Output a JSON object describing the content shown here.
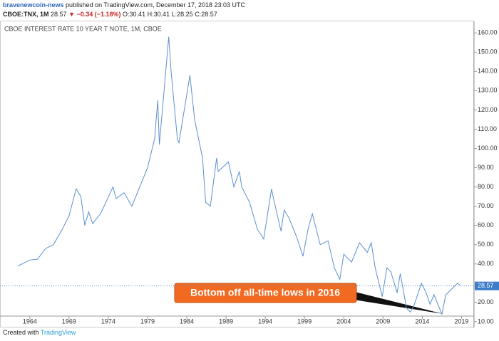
{
  "header": {
    "author": "bravenewcoin-news",
    "published": "published on TradingView.com, December 17, 2018 23:03 UTC",
    "symbol": "CBOE:TNX, 1M",
    "last": "28.57",
    "change": "▼ −0.34 (−1.18%)",
    "open": "O:30.41",
    "high": "H:30.41",
    "low": "L:28.25",
    "close": "C:28.57"
  },
  "footer": {
    "created": "Created with",
    "brand": "TradingView"
  },
  "chart_data": {
    "type": "line",
    "title": "CBOE INTEREST RATE 10 YEAR T NOTE, 1M, CBOE",
    "annotation": "Bottom off all-time lows in 2016",
    "series": [
      {
        "name": "CBOE:TNX",
        "color": "#5b8fd0",
        "x": [
          1962.5,
          1963,
          1964,
          1965,
          1966,
          1967,
          1968,
          1969,
          1969.9,
          1970.5,
          1971,
          1971.5,
          1972,
          1973,
          1973.7,
          1974.6,
          1975,
          1976,
          1977,
          1978,
          1979,
          1979.9,
          1980.3,
          1980.5,
          1981,
          1981.7,
          1982,
          1982.8,
          1983,
          1984.4,
          1985,
          1986,
          1986.4,
          1987,
          1987.8,
          1988,
          1989.3,
          1990,
          1990.7,
          1991,
          1992,
          1993,
          1993.8,
          1994.8,
          1995,
          1996,
          1996.4,
          1997,
          1998,
          1998.8,
          1999.5,
          2000,
          2001,
          2002,
          2002.8,
          2003.5,
          2004,
          2005,
          2006,
          2007,
          2007.5,
          2008,
          2008.9,
          2009.5,
          2010,
          2010.8,
          2011.2,
          2012,
          2012.5,
          2013,
          2013.9,
          2014.5,
          2015,
          2015.5,
          2016.5,
          2017,
          2018,
          2018.5,
          2018.9
        ],
        "values": [
          39,
          40,
          42,
          42.5,
          48,
          50,
          57,
          65,
          79,
          75,
          60,
          67,
          61,
          66,
          72,
          80,
          74,
          77,
          70,
          80,
          90,
          105,
          125,
          102,
          125,
          158,
          140,
          105,
          103,
          138,
          115,
          95,
          72,
          70,
          95,
          88,
          93,
          80,
          88,
          80,
          72,
          58,
          53,
          79,
          75,
          57,
          68,
          64,
          54,
          44,
          59,
          66,
          50,
          52,
          38,
          32,
          45,
          41,
          51,
          46,
          51,
          38,
          23,
          38,
          36,
          25,
          35,
          17,
          15,
          19,
          30,
          25,
          19,
          24,
          14,
          24,
          28,
          30,
          28.57
        ]
      }
    ],
    "xlim": [
      1960.2,
      2020.6
    ],
    "xticks": [
      1964,
      1969,
      1974,
      1979,
      1984,
      1989,
      1994,
      1999,
      2004,
      2009,
      2014,
      2019
    ],
    "ylim": [
      7,
      166
    ],
    "yticks": [
      {
        "value": 10,
        "label": "10.00"
      },
      {
        "value": 20,
        "label": "20.00"
      },
      {
        "value": 40,
        "label": "40.00"
      },
      {
        "value": 50,
        "label": "50.00"
      },
      {
        "value": 60,
        "label": "60.00"
      },
      {
        "value": 70,
        "label": "70.00"
      },
      {
        "value": 80,
        "label": "80.00"
      },
      {
        "value": 90,
        "label": "90.00"
      },
      {
        "value": 100,
        "label": "100.00"
      },
      {
        "value": 110,
        "label": "110.00"
      },
      {
        "value": 120,
        "label": "120.00"
      },
      {
        "value": 130,
        "label": "130.00"
      },
      {
        "value": 140,
        "label": "140.00"
      },
      {
        "value": 150,
        "label": "150.00"
      },
      {
        "value": 160,
        "label": "160.00"
      }
    ],
    "grid": false
  }
}
